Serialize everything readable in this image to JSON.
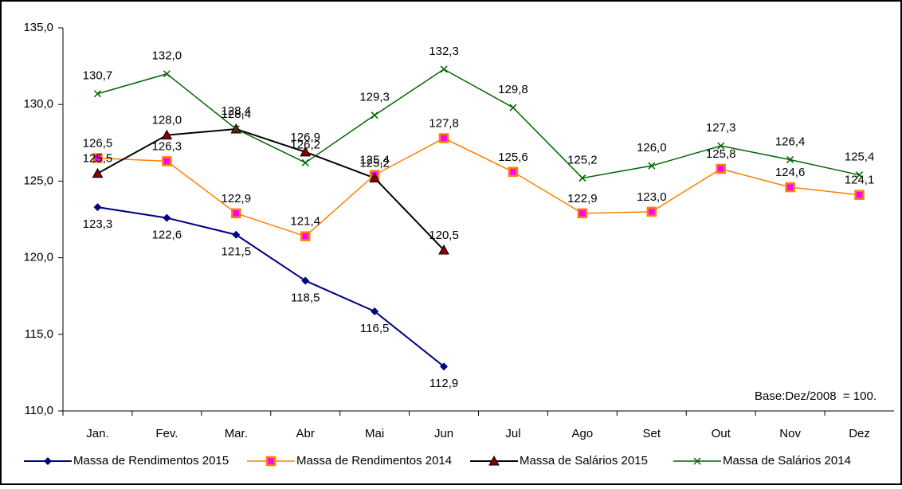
{
  "chart_data": {
    "type": "line",
    "categories": [
      "Jan.",
      "Fev.",
      "Mar.",
      "Abr",
      "Mai",
      "Jun",
      "Jul",
      "Ago",
      "Set",
      "Out",
      "Nov",
      "Dez"
    ],
    "series": [
      {
        "name": "Massa de Rendimentos 2015",
        "color": "#000080",
        "marker": "diamond",
        "values": [
          123.3,
          122.6,
          121.5,
          118.5,
          116.5,
          112.9,
          null,
          null,
          null,
          null,
          null,
          null
        ],
        "value_labels": [
          "123,3",
          "122,6",
          "121,5",
          "118,5",
          "116,5",
          "112,9",
          null,
          null,
          null,
          null,
          null,
          null
        ]
      },
      {
        "name": "Massa de Rendimentos 2014",
        "color": "#ff8000",
        "marker": "square",
        "values": [
          126.5,
          126.3,
          122.9,
          121.4,
          125.4,
          127.8,
          125.6,
          122.9,
          123.0,
          125.8,
          124.6,
          124.1
        ],
        "value_labels": [
          "126,5",
          "126,3",
          "122,9",
          "121,4",
          "125,4",
          "127,8",
          "125,6",
          "122,9",
          "123,0",
          "125,8",
          "124,6",
          "124,1"
        ]
      },
      {
        "name": "Massa de Salários 2015",
        "color": "#000000",
        "marker": "triangle",
        "values": [
          125.5,
          128.0,
          128.4,
          126.9,
          125.2,
          120.5,
          null,
          null,
          null,
          null,
          null,
          null
        ],
        "value_labels": [
          "125,5",
          "128,0",
          "128,4",
          "126,9",
          "125,2",
          "120,5",
          null,
          null,
          null,
          null,
          null,
          null
        ]
      },
      {
        "name": "Massa de Salários 2014",
        "color": "#006400",
        "marker": "x",
        "values": [
          130.7,
          132.0,
          128.4,
          126.2,
          129.3,
          132.3,
          129.8,
          125.2,
          126.0,
          127.3,
          126.4,
          125.4
        ],
        "value_labels": [
          "130,7",
          "132,0",
          "128,4",
          "126,2",
          "129,3",
          "132,3",
          "129,8",
          "125,2",
          "126,0",
          "127,3",
          "126,4",
          "125,4"
        ]
      }
    ],
    "ylim": [
      110,
      135
    ],
    "yticks": [
      {
        "value": 110,
        "label": "110,0"
      },
      {
        "value": 115,
        "label": "115,0"
      },
      {
        "value": 120,
        "label": "120,0"
      },
      {
        "value": 125,
        "label": "125,0"
      },
      {
        "value": 130,
        "label": "130,0"
      },
      {
        "value": 135,
        "label": "135,0"
      }
    ],
    "annotation": "Base:Dez/2008  = 100.",
    "legend": "bottom"
  }
}
